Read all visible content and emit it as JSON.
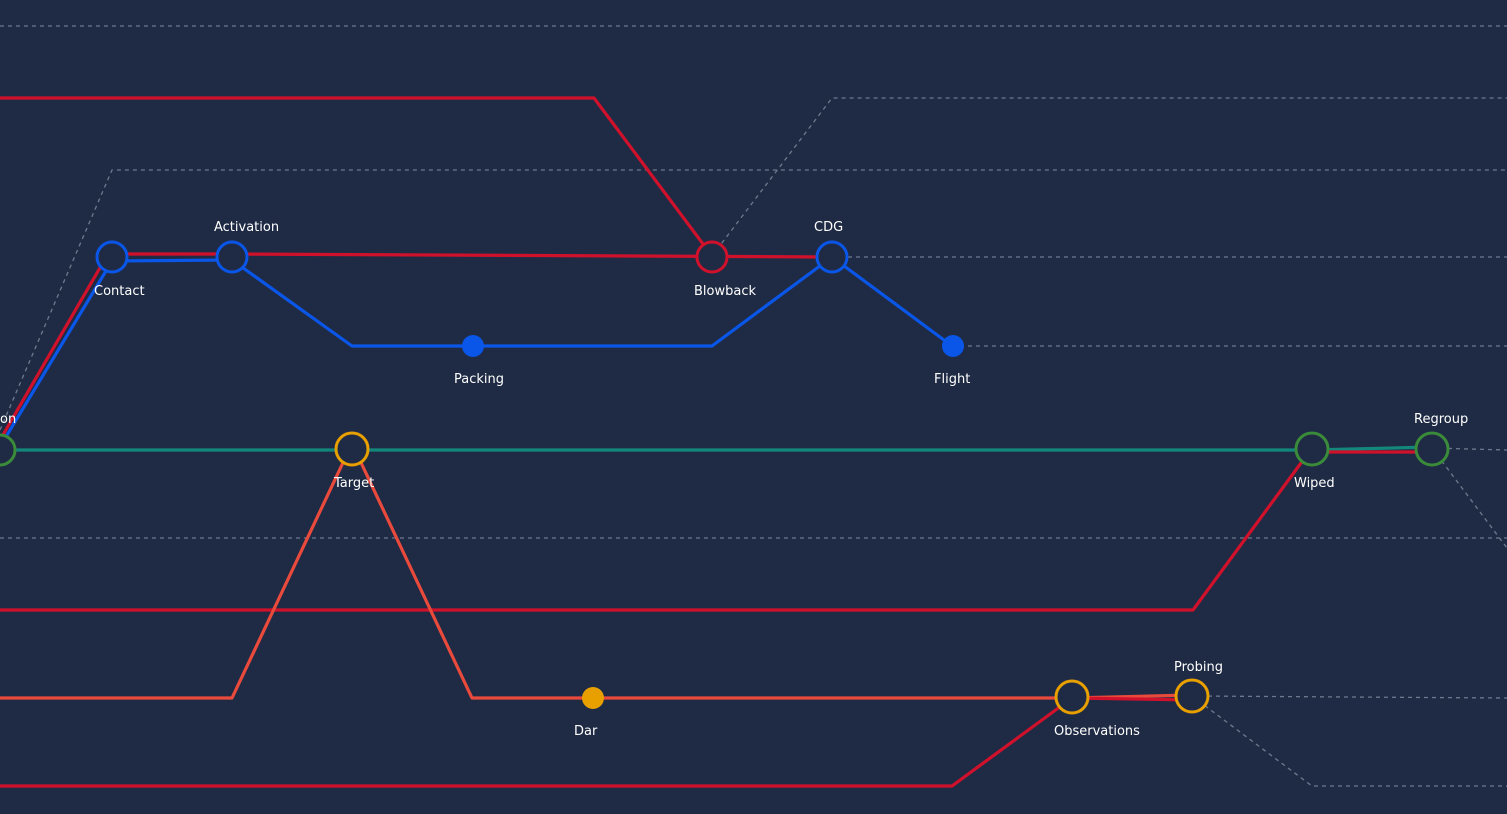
{
  "colors": {
    "background": "#1f2b44",
    "red": "#d0112b",
    "blue": "#0a56e8",
    "teal": "#13877a",
    "orange_red": "#e94a3c",
    "green": "#3a8b3a",
    "amber": "#e8a000",
    "guide": "#6c7a8c"
  },
  "stations": {
    "on": "on",
    "contact": "Contact",
    "activation": "Activation",
    "blowback": "Blowback",
    "cdg": "CDG",
    "packing": "Packing",
    "flight": "Flight",
    "target": "Target",
    "wiped": "Wiped",
    "regroup": "Regroup",
    "dar": "Dar",
    "observations": "Observations",
    "probing": "Probing"
  }
}
